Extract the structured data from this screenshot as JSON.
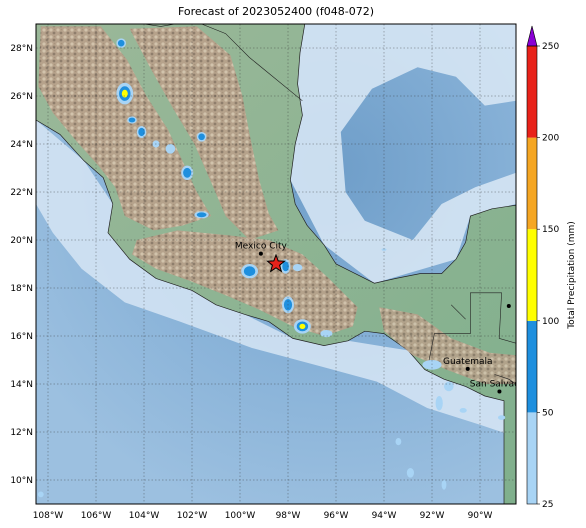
{
  "title": "Forecast of 2023052400 (f048-072)",
  "map": {
    "projection": "PlateCarree",
    "lon_range": [
      -108.5,
      -88.5
    ],
    "lat_range": [
      9,
      29
    ],
    "x_ticks": [
      "108°W",
      "106°W",
      "104°W",
      "102°W",
      "100°W",
      "98°W",
      "96°W",
      "94°W",
      "92°W",
      "90°W"
    ],
    "y_ticks": [
      "10°N",
      "12°N",
      "14°N",
      "16°N",
      "18°N",
      "20°N",
      "22°N",
      "24°N",
      "26°N",
      "28°N"
    ],
    "gridlines": "dotted",
    "basemap": "shaded relief",
    "colors": {
      "ocean_deep": "#7aa6cf",
      "ocean_shallow": "#dbe9f6",
      "lowland": "#8fb596",
      "highland": "#b59a85",
      "precip_25_50": "#a8d4f5",
      "precip_50_100": "#1e8fde",
      "precip_100_150": "#ffff00",
      "precip_150_200": "#f5a623",
      "precip_200_250": "#e8221a",
      "precip_over": "#8a00d4"
    }
  },
  "markers": [
    {
      "name": "Mexico City",
      "lon": -99.13,
      "lat": 19.43,
      "type": "dot"
    },
    {
      "name": "Guatemala",
      "lon": -90.51,
      "lat": 14.63,
      "type": "dot"
    },
    {
      "name": "San Salvador",
      "lon": -89.19,
      "lat": 13.69,
      "type": "dot"
    },
    {
      "name": "",
      "lon": -88.8,
      "lat": 17.25,
      "type": "dot"
    },
    {
      "name": "",
      "lon": -98.5,
      "lat": 19.0,
      "type": "star",
      "color": "#e8221a"
    }
  ],
  "colorbar": {
    "label": "Total Precipitation (mm)",
    "ticks": [
      "25",
      "50",
      "100",
      "150",
      "200",
      "250"
    ],
    "extend": "max"
  },
  "precip_cells": [
    {
      "lon": -104.8,
      "lat": 26.1,
      "rx": 0.35,
      "ry": 0.45,
      "level": 3
    },
    {
      "lon": -104.95,
      "lat": 28.2,
      "rx": 0.2,
      "ry": 0.2,
      "level": 2
    },
    {
      "lon": -104.5,
      "lat": 25.0,
      "rx": 0.2,
      "ry": 0.15,
      "level": 2
    },
    {
      "lon": -104.1,
      "lat": 24.5,
      "rx": 0.2,
      "ry": 0.25,
      "level": 2
    },
    {
      "lon": -103.5,
      "lat": 24.0,
      "rx": 0.15,
      "ry": 0.15,
      "level": 1
    },
    {
      "lon": -102.9,
      "lat": 23.8,
      "rx": 0.2,
      "ry": 0.2,
      "level": 1
    },
    {
      "lon": -101.6,
      "lat": 24.3,
      "rx": 0.2,
      "ry": 0.2,
      "level": 2
    },
    {
      "lon": -102.2,
      "lat": 22.8,
      "rx": 0.25,
      "ry": 0.3,
      "level": 2
    },
    {
      "lon": -101.6,
      "lat": 21.05,
      "rx": 0.3,
      "ry": 0.15,
      "level": 2
    },
    {
      "lon": -99.6,
      "lat": 18.7,
      "rx": 0.35,
      "ry": 0.3,
      "level": 2
    },
    {
      "lon": -98.1,
      "lat": 18.9,
      "rx": 0.2,
      "ry": 0.3,
      "level": 2
    },
    {
      "lon": -97.6,
      "lat": 18.85,
      "rx": 0.2,
      "ry": 0.15,
      "level": 1
    },
    {
      "lon": -98.0,
      "lat": 17.3,
      "rx": 0.25,
      "ry": 0.35,
      "level": 2
    },
    {
      "lon": -97.4,
      "lat": 16.4,
      "rx": 0.35,
      "ry": 0.3,
      "level": 3
    },
    {
      "lon": -96.4,
      "lat": 16.1,
      "rx": 0.25,
      "ry": 0.15,
      "level": 1
    },
    {
      "lon": -92.0,
      "lat": 14.8,
      "rx": 0.4,
      "ry": 0.2,
      "level": 1
    },
    {
      "lon": -91.3,
      "lat": 13.9,
      "rx": 0.2,
      "ry": 0.2,
      "level": 1
    },
    {
      "lon": -90.7,
      "lat": 12.9,
      "rx": 0.15,
      "ry": 0.1,
      "level": 1
    },
    {
      "lon": -91.7,
      "lat": 13.2,
      "rx": 0.15,
      "ry": 0.3,
      "level": 1
    },
    {
      "lon": -89.1,
      "lat": 12.6,
      "rx": 0.15,
      "ry": 0.1,
      "level": 1
    },
    {
      "lon": -93.4,
      "lat": 11.6,
      "rx": 0.12,
      "ry": 0.15,
      "level": 1
    },
    {
      "lon": -92.9,
      "lat": 10.3,
      "rx": 0.15,
      "ry": 0.2,
      "level": 1
    },
    {
      "lon": -108.3,
      "lat": 9.4,
      "rx": 0.12,
      "ry": 0.12,
      "level": 1
    },
    {
      "lon": -91.5,
      "lat": 9.8,
      "rx": 0.1,
      "ry": 0.2,
      "level": 1
    },
    {
      "lon": -94.0,
      "lat": 19.6,
      "rx": 0.1,
      "ry": 0.05,
      "level": 1
    }
  ]
}
